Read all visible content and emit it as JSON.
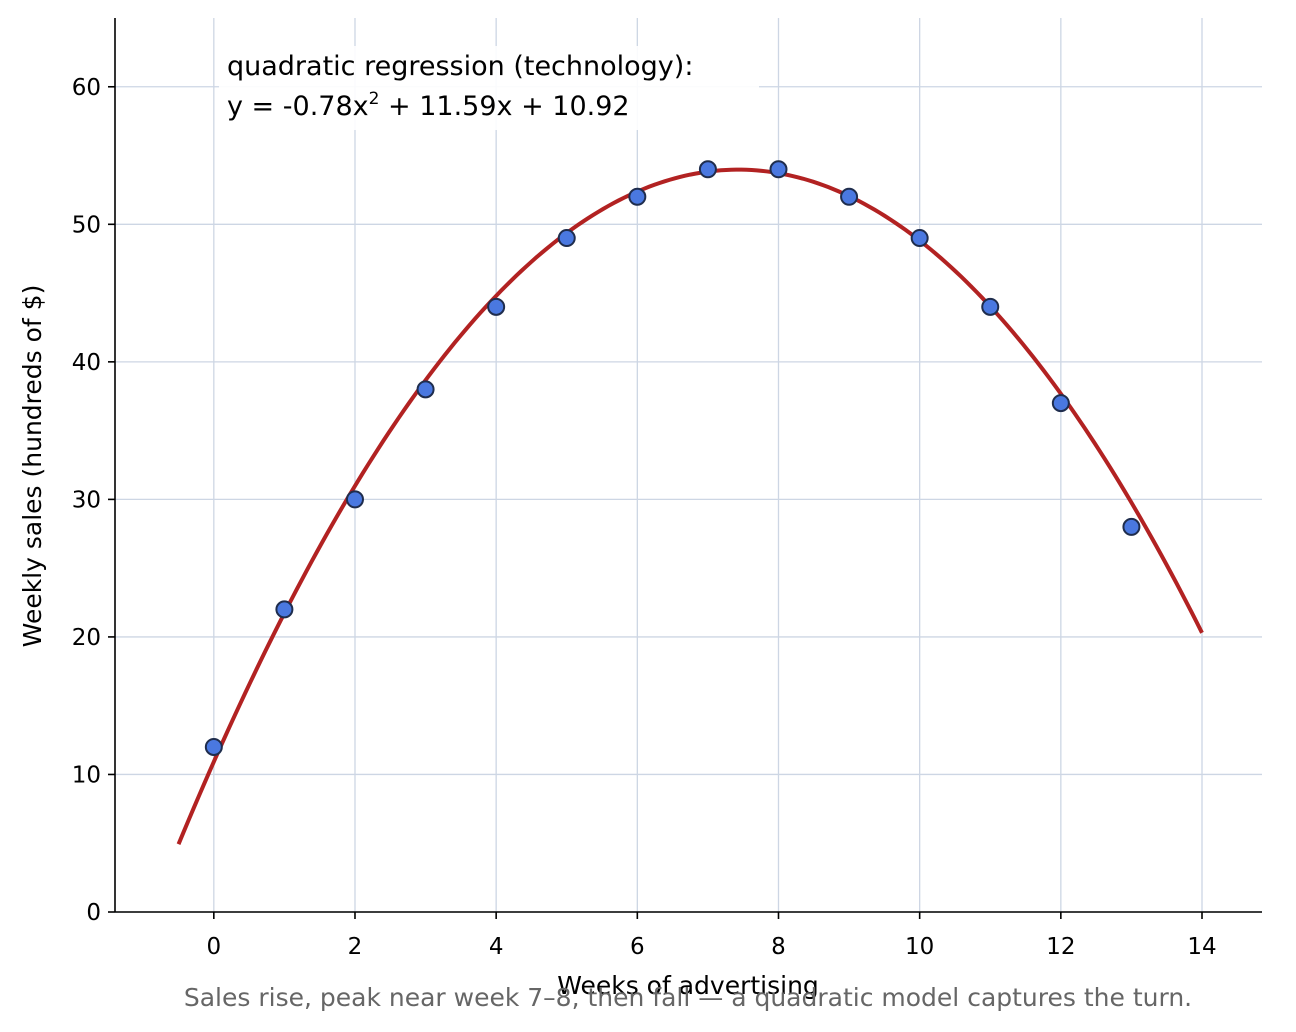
{
  "chart_data": {
    "type": "scatter",
    "xlabel": "Weeks of advertising",
    "ylabel": "Weekly sales (hundreds of $)",
    "xlim": [
      -1.4,
      14.85
    ],
    "ylim": [
      0,
      65
    ],
    "xticks": [
      0,
      2,
      4,
      6,
      8,
      10,
      12,
      14
    ],
    "yticks": [
      0,
      10,
      20,
      30,
      40,
      50,
      60
    ],
    "grid": true,
    "points": {
      "x": [
        0,
        1,
        2,
        3,
        4,
        5,
        6,
        7,
        8,
        9,
        10,
        11,
        12,
        13
      ],
      "y": [
        12,
        22,
        30,
        38,
        44,
        49,
        52,
        54,
        54,
        52,
        49,
        44,
        37,
        28
      ]
    },
    "fit": {
      "kind": "quadratic",
      "a": -0.78,
      "b": 11.59,
      "c": 10.92,
      "x_range": [
        -0.5,
        14
      ]
    },
    "annotation": {
      "line1": "quadratic regression (technology):",
      "line2_prefix": "y = -0.78x",
      "line2_sup": "2",
      "line2_suffix": " + 11.59x + 10.92"
    },
    "caption": "Sales rise, peak near week 7–8, then fall — a quadratic model captures the turn.",
    "colors": {
      "point_fill": "#4a78e0",
      "point_edge": "#1f2d4d",
      "fit_line": "#b22222",
      "grid": "#cdd6e4",
      "annotation_text": "#b22222",
      "caption_text": "#666666"
    }
  }
}
